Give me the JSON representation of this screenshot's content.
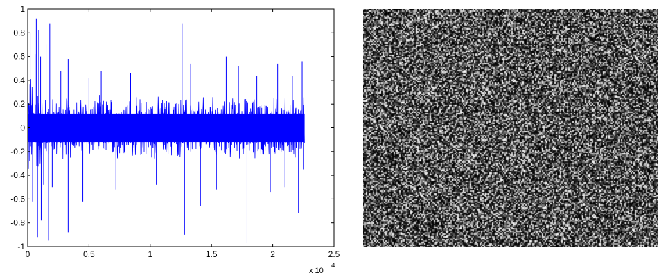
{
  "chart_data": [
    {
      "type": "line",
      "title": "",
      "xlabel": "",
      "ylabel": "",
      "xlim": [
        0,
        25000
      ],
      "ylim": [
        -1,
        1
      ],
      "x_ticks": [
        0,
        5000,
        10000,
        15000,
        20000,
        25000
      ],
      "x_tick_labels": [
        "0",
        "0.5",
        "1",
        "1.5",
        "2",
        "2.5"
      ],
      "x_exponent_base": "x 10",
      "x_exponent_power": "4",
      "y_ticks": [
        -1,
        -0.8,
        -0.6,
        -0.4,
        -0.2,
        0,
        0.2,
        0.4,
        0.6,
        0.8,
        1
      ],
      "y_tick_labels": [
        "-1",
        "-0.8",
        "-0.6",
        "-0.4",
        "-0.2",
        "0",
        "0.2",
        "0.4",
        "0.6",
        "0.8",
        "1"
      ],
      "grid": false,
      "legend": "none",
      "series": [
        {
          "color": "#0000ff",
          "x_range": [
            0,
            22600
          ],
          "typical_envelope": 0.25,
          "peaks": [
            {
              "x": 200,
              "y": 0.8
            },
            {
              "x": 400,
              "y": -0.62
            },
            {
              "x": 600,
              "y": 0.62
            },
            {
              "x": 700,
              "y": 0.92
            },
            {
              "x": 800,
              "y": -0.92
            },
            {
              "x": 900,
              "y": 0.82
            },
            {
              "x": 1050,
              "y": 0.6
            },
            {
              "x": 1100,
              "y": -0.78
            },
            {
              "x": 1300,
              "y": -0.48
            },
            {
              "x": 1500,
              "y": 0.7
            },
            {
              "x": 1700,
              "y": -0.95
            },
            {
              "x": 1800,
              "y": 0.88
            },
            {
              "x": 2000,
              "y": -0.5
            },
            {
              "x": 2700,
              "y": 0.48
            },
            {
              "x": 3300,
              "y": -0.88
            },
            {
              "x": 3300,
              "y": 0.58
            },
            {
              "x": 4500,
              "y": -0.62
            },
            {
              "x": 5000,
              "y": 0.42
            },
            {
              "x": 6000,
              "y": 0.48
            },
            {
              "x": 7200,
              "y": -0.52
            },
            {
              "x": 8400,
              "y": 0.46
            },
            {
              "x": 10500,
              "y": -0.48
            },
            {
              "x": 12600,
              "y": 0.88
            },
            {
              "x": 12800,
              "y": -0.9
            },
            {
              "x": 13300,
              "y": 0.54
            },
            {
              "x": 14100,
              "y": -0.66
            },
            {
              "x": 15400,
              "y": -0.52
            },
            {
              "x": 16200,
              "y": 0.6
            },
            {
              "x": 17200,
              "y": 0.52
            },
            {
              "x": 17900,
              "y": -0.97
            },
            {
              "x": 18700,
              "y": 0.44
            },
            {
              "x": 19800,
              "y": -0.54
            },
            {
              "x": 20400,
              "y": 0.54
            },
            {
              "x": 21000,
              "y": -0.5
            },
            {
              "x": 21600,
              "y": 0.44
            },
            {
              "x": 22100,
              "y": -0.72
            },
            {
              "x": 22400,
              "y": 0.56
            },
            {
              "x": 22500,
              "y": -0.35
            }
          ]
        }
      ]
    },
    {
      "type": "heatmap",
      "title": "",
      "colormap": "gray",
      "background": "#111111",
      "description_values": "random noise image, grayscale speckle"
    }
  ]
}
